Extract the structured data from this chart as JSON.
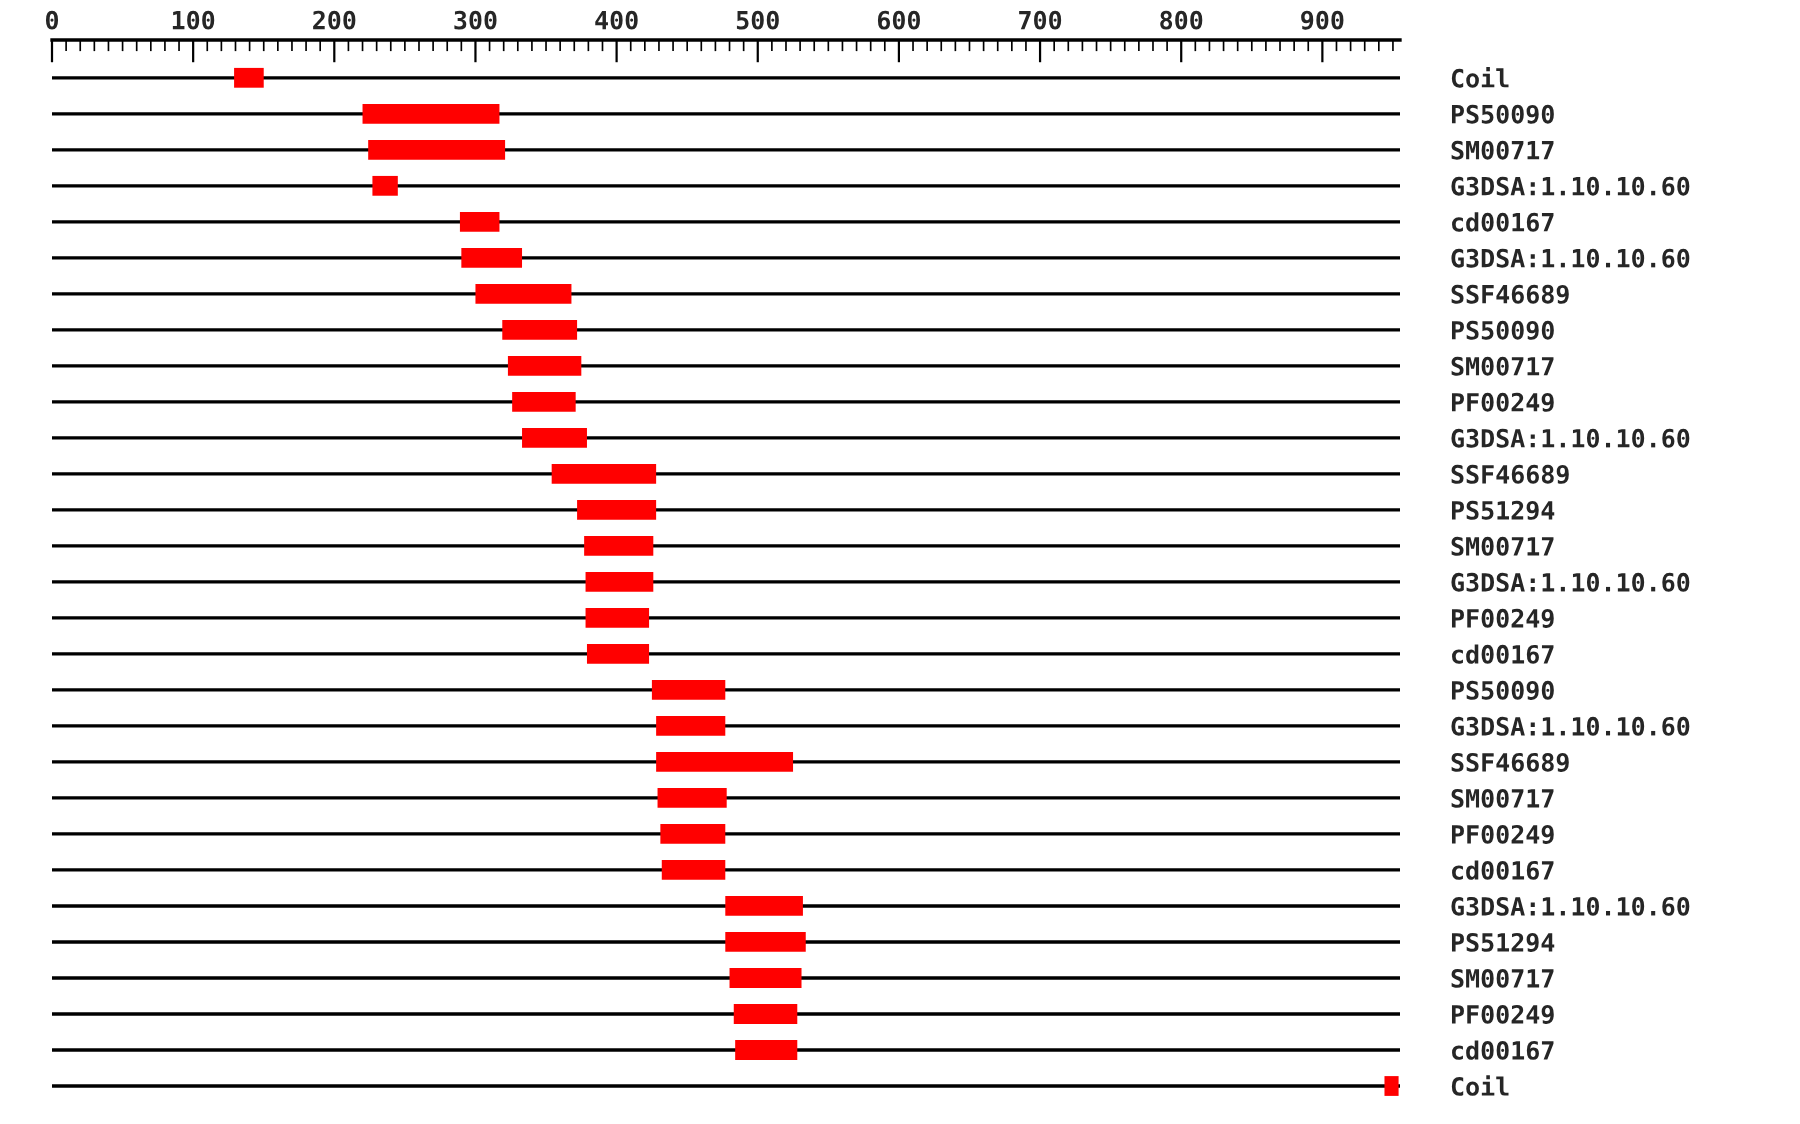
{
  "chart_data": {
    "type": "bar",
    "orientation": "horizontal",
    "color": "#ff0000",
    "categories": [
      "Coil",
      "PS50090",
      "SM00717",
      "G3DSA:1.10.10.60",
      "cd00167",
      "G3DSA:1.10.10.60",
      "SSF46689",
      "PS50090",
      "SM00717",
      "PF00249",
      "G3DSA:1.10.10.60",
      "SSF46689",
      "PS51294",
      "SM00717",
      "G3DSA:1.10.10.60",
      "PF00249",
      "cd00167",
      "PS50090",
      "G3DSA:1.10.10.60",
      "SSF46689",
      "SM00717",
      "PF00249",
      "cd00167",
      "G3DSA:1.10.10.60",
      "PS51294",
      "SM00717",
      "PF00249",
      "cd00167",
      "Coil"
    ],
    "base": [
      129,
      220,
      224,
      227,
      289,
      290,
      300,
      319,
      323,
      326,
      333,
      354,
      372,
      377,
      378,
      378,
      379,
      425,
      428,
      428,
      429,
      431,
      432,
      477,
      477,
      480,
      483,
      484,
      944
    ],
    "values": [
      21,
      97,
      97,
      18,
      28,
      43,
      68,
      53,
      52,
      45,
      46,
      74,
      56,
      49,
      48,
      45,
      44,
      52,
      49,
      97,
      49,
      46,
      45,
      55,
      57,
      51,
      45,
      44,
      10
    ],
    "xlim": [
      0,
      955
    ],
    "xticks": [
      0,
      {
        "value": 10,
        "label": null
      },
      {
        "value": 20,
        "label": null
      },
      {
        "value": 30,
        "label": null
      },
      {
        "value": 40,
        "label": null
      },
      {
        "value": 50,
        "label": null
      },
      {
        "value": 60,
        "label": null
      },
      {
        "value": 70,
        "label": null
      },
      {
        "value": 80,
        "label": null
      },
      {
        "value": 90,
        "label": null
      },
      100,
      {
        "value": 110,
        "label": null
      },
      {
        "value": 120,
        "label": null
      },
      {
        "value": 130,
        "label": null
      },
      {
        "value": 140,
        "label": null
      },
      {
        "value": 150,
        "label": null
      },
      {
        "value": 160,
        "label": null
      },
      {
        "value": 170,
        "label": null
      },
      {
        "value": 180,
        "label": null
      },
      {
        "value": 190,
        "label": null
      },
      200,
      {
        "value": 210,
        "label": null
      },
      {
        "value": 220,
        "label": null
      },
      {
        "value": 230,
        "label": null
      },
      {
        "value": 240,
        "label": null
      },
      {
        "value": 250,
        "label": null
      },
      {
        "value": 260,
        "label": null
      },
      {
        "value": 270,
        "label": null
      },
      {
        "value": 280,
        "label": null
      },
      {
        "value": 290,
        "label": null
      },
      300,
      {
        "value": 310,
        "label": null
      },
      {
        "value": 320,
        "label": null
      },
      {
        "value": 330,
        "label": null
      },
      {
        "value": 340,
        "label": null
      },
      {
        "value": 350,
        "label": null
      },
      {
        "value": 360,
        "label": null
      },
      {
        "value": 370,
        "label": null
      },
      {
        "value": 380,
        "label": null
      },
      {
        "value": 390,
        "label": null
      },
      400,
      {
        "value": 410,
        "label": null
      },
      {
        "value": 420,
        "label": null
      },
      {
        "value": 430,
        "label": null
      },
      {
        "value": 440,
        "label": null
      },
      {
        "value": 450,
        "label": null
      },
      {
        "value": 460,
        "label": null
      },
      {
        "value": 470,
        "label": null
      },
      {
        "value": 480,
        "label": null
      },
      {
        "value": 490,
        "label": null
      },
      500,
      {
        "value": 510,
        "label": null
      },
      {
        "value": 520,
        "label": null
      },
      {
        "value": 530,
        "label": null
      },
      {
        "value": 540,
        "label": null
      },
      {
        "value": 550,
        "label": null
      },
      {
        "value": 560,
        "label": null
      },
      {
        "value": 570,
        "label": null
      },
      {
        "value": 580,
        "label": null
      },
      {
        "value": 590,
        "label": null
      },
      600,
      {
        "value": 610,
        "label": null
      },
      {
        "value": 620,
        "label": null
      },
      {
        "value": 630,
        "label": null
      },
      {
        "value": 640,
        "label": null
      },
      {
        "value": 650,
        "label": null
      },
      {
        "value": 660,
        "label": null
      },
      {
        "value": 670,
        "label": null
      },
      {
        "value": 680,
        "label": null
      },
      {
        "value": 690,
        "label": null
      },
      700,
      {
        "value": 710,
        "label": null
      },
      {
        "value": 720,
        "label": null
      },
      {
        "value": 730,
        "label": null
      },
      {
        "value": 740,
        "label": null
      },
      {
        "value": 750,
        "label": null
      },
      {
        "value": 760,
        "label": null
      },
      {
        "value": 770,
        "label": null
      },
      {
        "value": 780,
        "label": null
      },
      {
        "value": 790,
        "label": null
      },
      800,
      {
        "value": 810,
        "label": null
      },
      {
        "value": 820,
        "label": null
      },
      {
        "value": 830,
        "label": null
      },
      {
        "value": 840,
        "label": null
      },
      {
        "value": 850,
        "label": null
      },
      {
        "value": 860,
        "label": null
      },
      {
        "value": 870,
        "label": null
      },
      {
        "value": 880,
        "label": null
      },
      {
        "value": 890,
        "label": null
      },
      900,
      {
        "value": 910,
        "label": null
      },
      {
        "value": 920,
        "label": null
      },
      {
        "value": 930,
        "label": null
      },
      {
        "value": 940,
        "label": null
      },
      {
        "value": 950,
        "label": null
      }
    ],
    "grid": false,
    "legend": false
  }
}
